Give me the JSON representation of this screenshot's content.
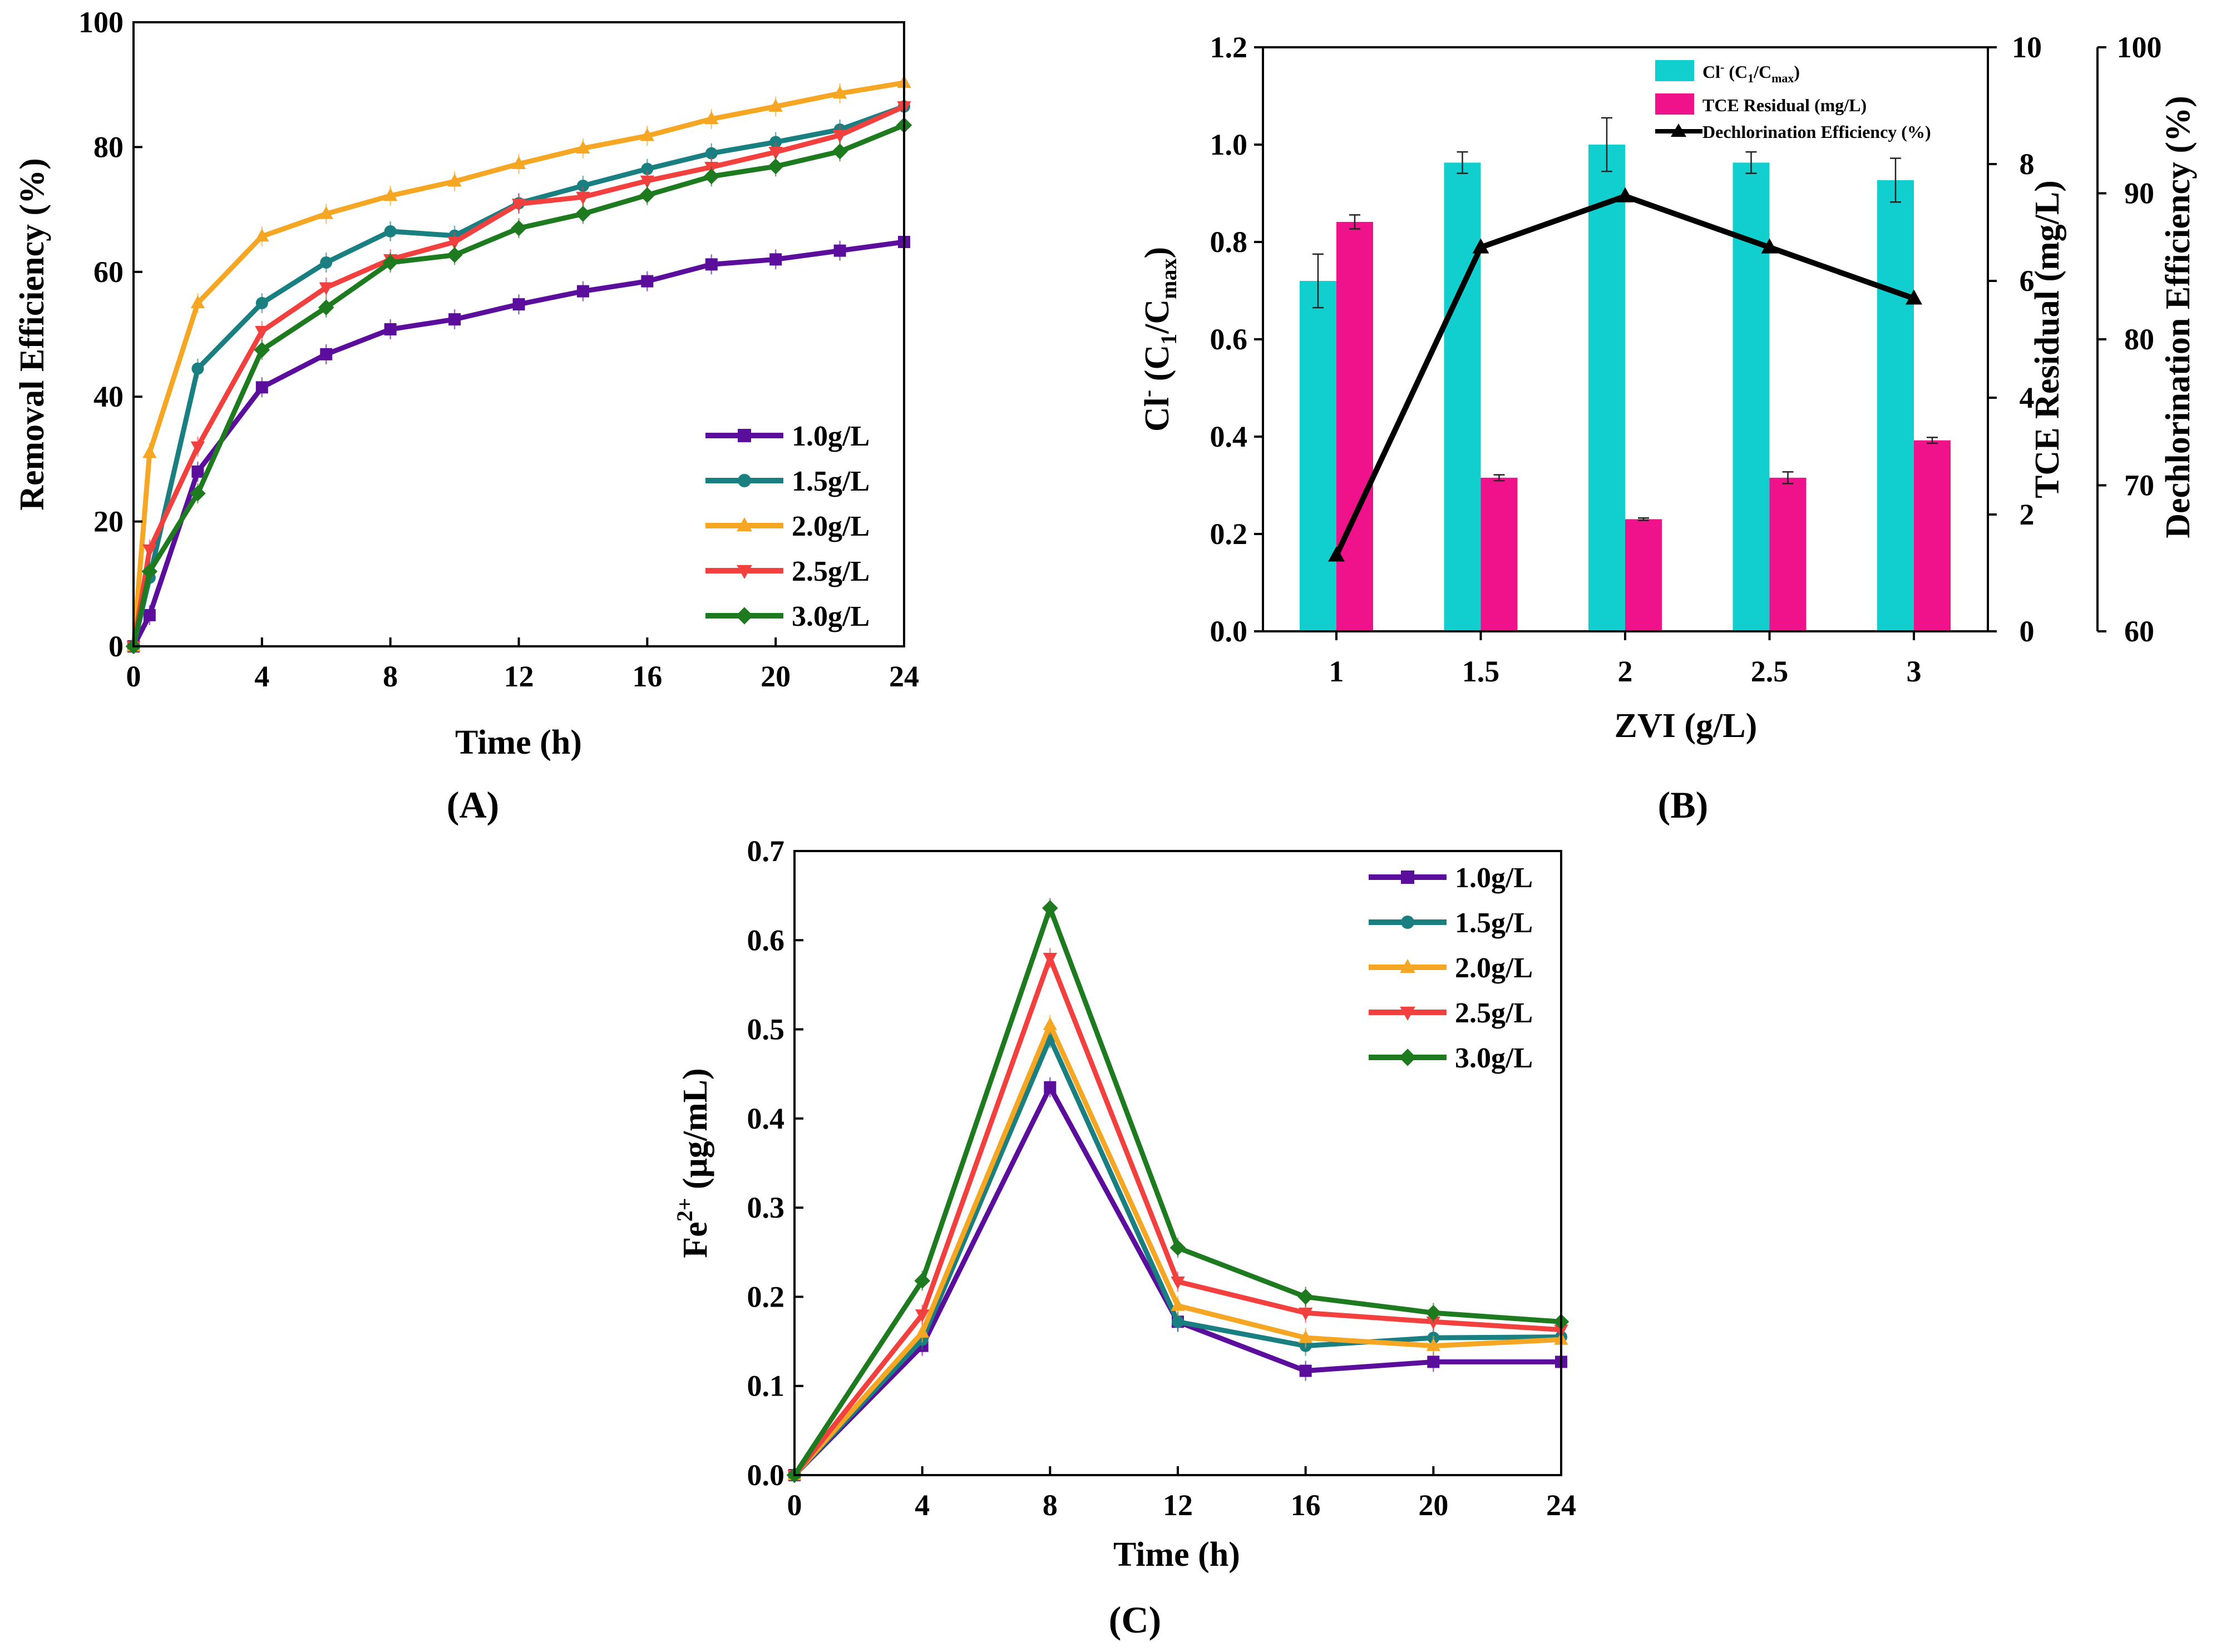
{
  "chart_data": [
    {
      "id": "A",
      "type": "line",
      "panel_label": "(A)",
      "xlabel": "Time (h)",
      "ylabel": "Removal Efficiency (%)",
      "xlim": [
        0,
        24
      ],
      "ylim": [
        0,
        100
      ],
      "xticks": [
        "0",
        "4",
        "8",
        "12",
        "16",
        "20",
        "24"
      ],
      "yticks": [
        "0",
        "20",
        "40",
        "60",
        "80",
        "100"
      ],
      "legend_position": "bottom-right",
      "x": [
        0,
        0.5,
        2,
        4,
        6,
        8,
        10,
        12,
        14,
        16,
        18,
        20,
        22,
        24
      ],
      "series": [
        {
          "name": "1.0g/L",
          "color": "#5b0e9c",
          "marker": "square",
          "values": [
            0,
            5,
            28,
            41.5,
            46.8,
            50.8,
            52.4,
            54.8,
            56.9,
            58.5,
            61.2,
            62,
            63.4,
            64.8
          ]
        },
        {
          "name": "1.5g/L",
          "color": "#1a7f80",
          "marker": "circle",
          "values": [
            0,
            11,
            44.5,
            55,
            61.5,
            66.5,
            65.8,
            71,
            73.8,
            76.5,
            79,
            80.8,
            82.8,
            86.5
          ]
        },
        {
          "name": "2.0g/L",
          "color": "#f5a623",
          "marker": "triangle-up",
          "values": [
            0,
            31,
            55,
            65.7,
            69.3,
            72.2,
            74.5,
            77.3,
            79.8,
            81.8,
            84.5,
            86.5,
            88.6,
            90.3
          ]
        },
        {
          "name": "2.5g/L",
          "color": "#f2403f",
          "marker": "triangle-down",
          "values": [
            0,
            15.5,
            32,
            50.5,
            57.5,
            62,
            64.8,
            70.9,
            72,
            74.6,
            76.8,
            79.2,
            81.9,
            86.5
          ]
        },
        {
          "name": "3.0g/L",
          "color": "#1e7a1e",
          "marker": "diamond",
          "values": [
            0,
            12,
            24.5,
            47.5,
            54.3,
            61.5,
            62.7,
            67,
            69.3,
            72.3,
            75.3,
            76.9,
            79.3,
            83.5
          ]
        }
      ]
    },
    {
      "id": "B",
      "type": "bar",
      "panel_label": "(B)",
      "xlabel": "ZVI (g/L)",
      "categories": [
        "1",
        "1.5",
        "2",
        "2.5",
        "3"
      ],
      "y_left": {
        "label_main": "Cl",
        "label_sup": "-",
        "label_rest": " (C",
        "label_sub1": "1",
        "label_mid": "/C",
        "label_sub2": "max",
        "label_end": ")",
        "lim": [
          0,
          1.2
        ],
        "ticks": [
          "0.0",
          "0.2",
          "0.4",
          "0.6",
          "0.8",
          "1.0",
          "1.2"
        ]
      },
      "y_right1": {
        "label": "TCE Residual (mg/L)",
        "lim": [
          0,
          10
        ],
        "ticks": [
          "0",
          "2",
          "4",
          "6",
          "8",
          "10"
        ]
      },
      "y_right2": {
        "label": "Dechlorination Efficiency (%)",
        "lim": [
          60,
          100
        ],
        "ticks": [
          "60",
          "70",
          "80",
          "90",
          "100"
        ]
      },
      "legend_position": "top-right",
      "series": [
        {
          "name": "Cl",
          "legend_sup": "-",
          "legend_rest": " (C",
          "legend_sub1": "1",
          "legend_mid": "/C",
          "legend_sub2": "max",
          "legend_end": ")",
          "axis": "left",
          "kind": "bar",
          "color": "#12cfcf",
          "values": [
            0.72,
            0.963,
            1.0,
            0.963,
            0.927
          ],
          "errors": [
            0.055,
            0.022,
            0.055,
            0.022,
            0.045
          ]
        },
        {
          "name": "TCE Residual (mg/L)",
          "axis": "right1",
          "kind": "bar",
          "color": "#f0128a",
          "values": [
            7.01,
            2.63,
            1.92,
            2.63,
            3.27
          ],
          "errors": [
            0.12,
            0.05,
            0.02,
            0.1,
            0.05
          ]
        },
        {
          "name": "Dechlorination Efficiency (%)",
          "axis": "right2",
          "kind": "line",
          "color": "#000000",
          "marker": "triangle-up",
          "values": [
            65.2,
            86.3,
            89.8,
            86.3,
            82.8
          ]
        }
      ]
    },
    {
      "id": "C",
      "type": "line",
      "panel_label": "(C)",
      "xlabel": "Time (h)",
      "ylabel_main": "Fe",
      "ylabel_sup": "2+",
      "ylabel_rest": " (μg/mL)",
      "xlim": [
        0,
        24
      ],
      "ylim": [
        0,
        0.7
      ],
      "xticks": [
        "0",
        "4",
        "8",
        "12",
        "16",
        "20",
        "24"
      ],
      "yticks": [
        "0.0",
        "0.1",
        "0.2",
        "0.3",
        "0.4",
        "0.5",
        "0.6",
        "0.7"
      ],
      "legend_position": "top-right",
      "x": [
        0,
        4,
        8,
        12,
        16,
        20,
        24
      ],
      "series": [
        {
          "name": "1.0g/L",
          "color": "#5b0e9c",
          "marker": "square",
          "values": [
            0,
            0.145,
            0.435,
            0.172,
            0.117,
            0.127,
            0.127
          ]
        },
        {
          "name": "1.5g/L",
          "color": "#1a7f80",
          "marker": "circle",
          "values": [
            0,
            0.152,
            0.49,
            0.172,
            0.145,
            0.154,
            0.155
          ]
        },
        {
          "name": "2.0g/L",
          "color": "#f5a623",
          "marker": "triangle-up",
          "values": [
            0,
            0.16,
            0.505,
            0.19,
            0.154,
            0.145,
            0.152
          ]
        },
        {
          "name": "2.5g/L",
          "color": "#f2403f",
          "marker": "triangle-down",
          "values": [
            0,
            0.18,
            0.58,
            0.217,
            0.182,
            0.172,
            0.163
          ]
        },
        {
          "name": "3.0g/L",
          "color": "#1e7a1e",
          "marker": "diamond",
          "values": [
            0,
            0.218,
            0.636,
            0.255,
            0.2,
            0.182,
            0.172
          ]
        }
      ]
    }
  ]
}
